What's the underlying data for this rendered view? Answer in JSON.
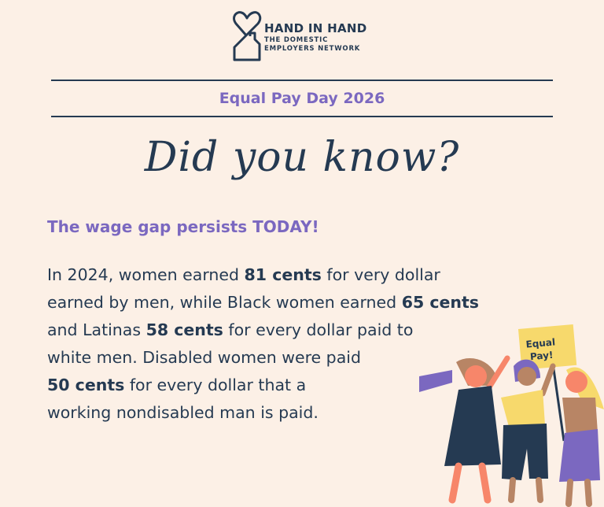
{
  "logo": {
    "title": "HAND IN HAND",
    "subtitle_line1": "THE DOMESTIC",
    "subtitle_line2": "EMPLOYERS NETWORK"
  },
  "banner": "Equal Pay Day 2026",
  "headline": "Did you know?",
  "subheading": "The wage gap persists TODAY!",
  "paragraph": {
    "l1a": "In 2024, women earned ",
    "l1b": "81 cents",
    "l1c": " for very dollar",
    "l2a": "earned by men, while Black women earned ",
    "l2b": "65 cents",
    "l3a": "and Latinas ",
    "l3b": "58 cents",
    "l3c": " for every dollar paid to",
    "l4": "white men. Disabled women were paid",
    "l5a": "50 cents",
    "l5b": "  for every dollar that a",
    "l6": "working nondisabled man is paid."
  },
  "sign": {
    "line1": "Equal",
    "line2": "Pay!"
  },
  "colors": {
    "background": "#fcf0e6",
    "navy": "#253a52",
    "purple": "#7b68c0",
    "yellow": "#f7d96c",
    "skin": "#f7866a",
    "tan": "#b88565"
  }
}
